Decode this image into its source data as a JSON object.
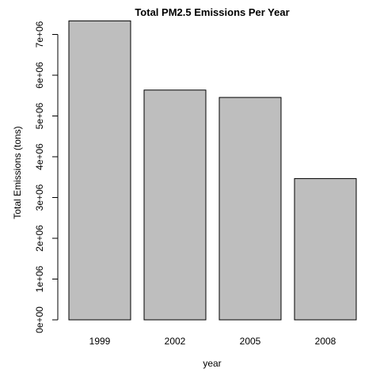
{
  "chart_data": {
    "type": "bar",
    "title": "Total PM2.5 Emissions Per Year",
    "xlabel": "year",
    "ylabel": "Total Emissions (tons)",
    "categories": [
      "1999",
      "2002",
      "2005",
      "2008"
    ],
    "values": [
      7332967,
      5635780,
      5454703,
      3464206
    ],
    "ylim": [
      0,
      7400000
    ],
    "yticks": [
      0,
      1000000,
      2000000,
      3000000,
      4000000,
      5000000,
      6000000,
      7000000
    ],
    "ytick_labels": [
      "0e+00",
      "1e+06",
      "2e+06",
      "3e+06",
      "4e+06",
      "5e+06",
      "6e+06",
      "7e+06"
    ],
    "bar_color": "#bebebe",
    "grid": false,
    "legend": "none"
  }
}
